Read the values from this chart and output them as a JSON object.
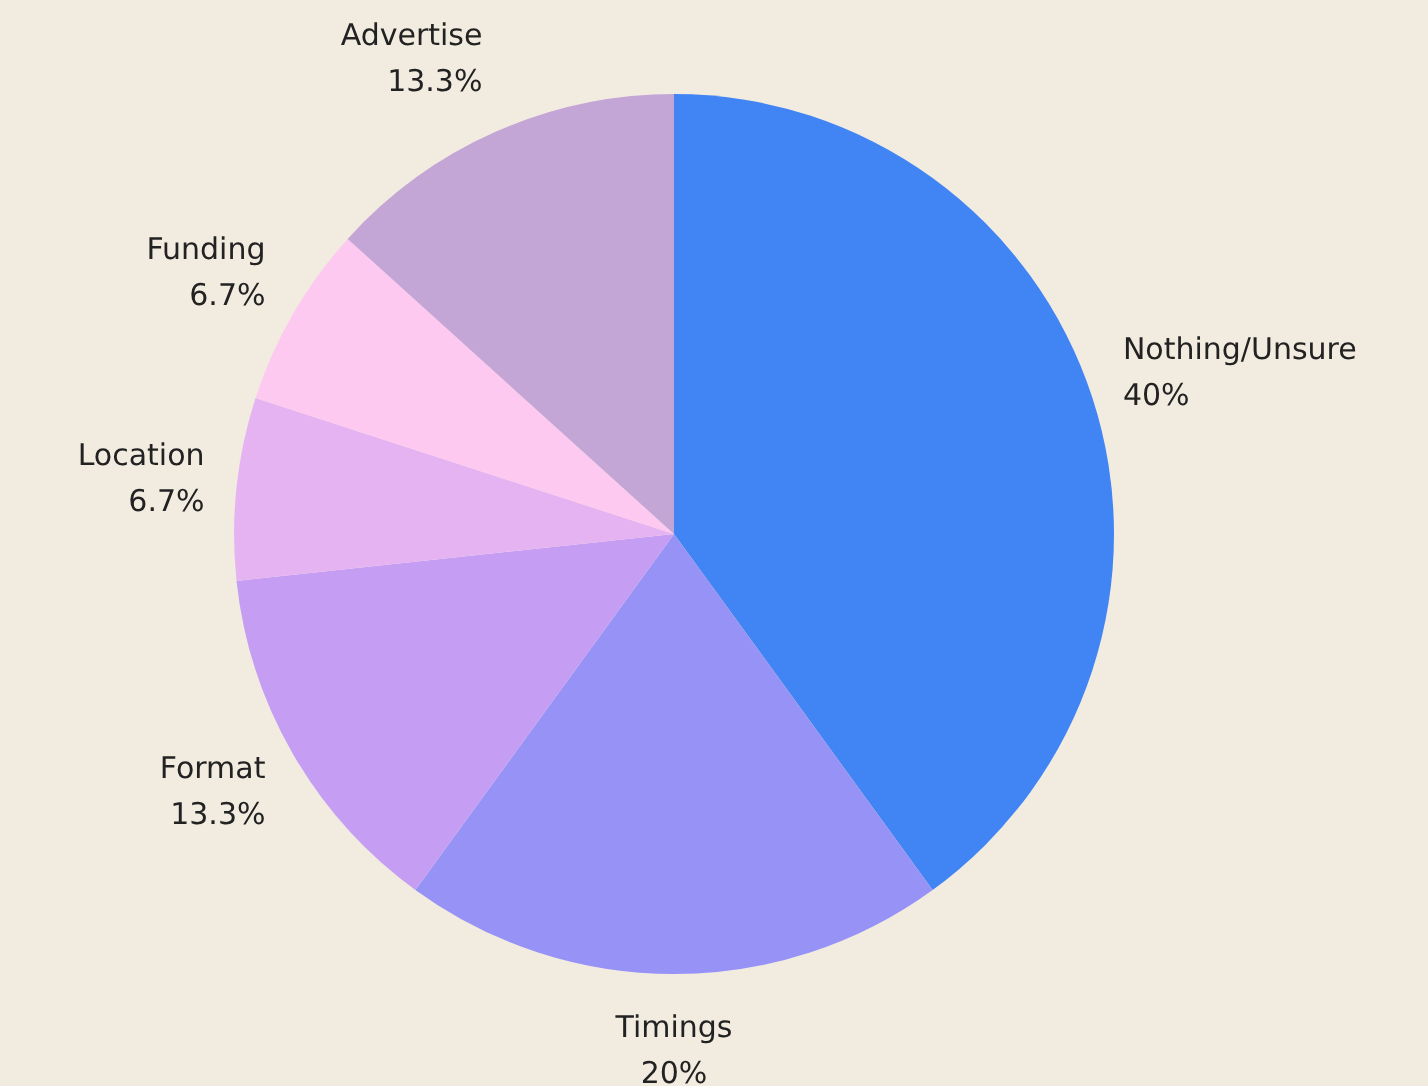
{
  "chart_data": {
    "type": "pie",
    "categories": [
      "Nothing/Unsure",
      "Timings",
      "Format",
      "Location",
      "Funding",
      "Advertise"
    ],
    "values": [
      40,
      20,
      13.3,
      6.7,
      6.7,
      13.3
    ],
    "value_labels": [
      "40%",
      "20%",
      "13.3%",
      "6.7%",
      "6.7%",
      "13.3%"
    ],
    "colors": [
      "#4184f4",
      "#9692f6",
      "#c59ef4",
      "#e6b3f2",
      "#fdc9f0",
      "#c4a6d6"
    ],
    "legend": false
  }
}
